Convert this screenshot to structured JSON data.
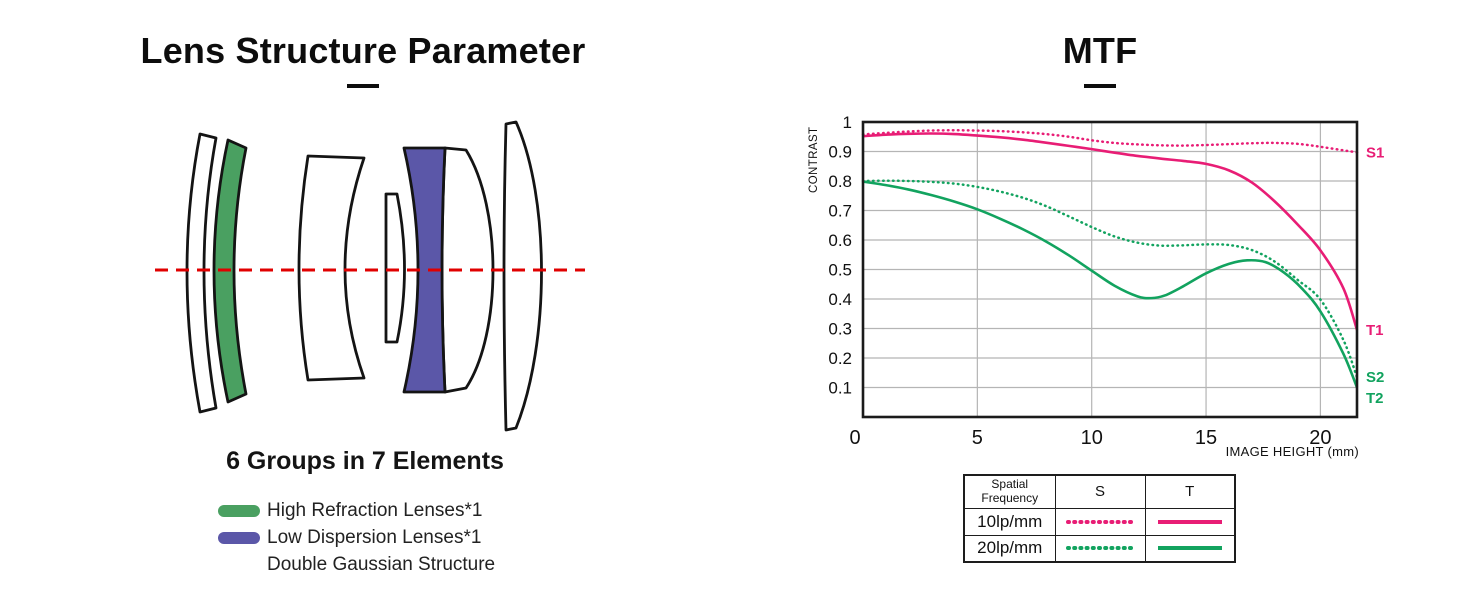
{
  "lens_section": {
    "title": "Lens Structure Parameter",
    "groups_text": "6 Groups in 7 Elements",
    "legend": [
      {
        "label": "High Refraction Lenses*1",
        "swatch": "high_refraction"
      },
      {
        "label": "Low Dispersion Lenses*1",
        "swatch": "low_dispersion"
      },
      {
        "label": "Double Gaussian Structure",
        "swatch": null
      }
    ],
    "colors": {
      "high_refraction": "#4aa061",
      "low_dispersion": "#5b57a8",
      "optical_axis": "#e00000",
      "outline": "#141414",
      "element_fill": "#ffffff"
    }
  },
  "mtf_section": {
    "title": "MTF",
    "table": {
      "headers": [
        "Spatial Frequency",
        "S",
        "T"
      ],
      "rows": [
        {
          "frequency": "10lp/mm",
          "color": "#e81d75",
          "s_style": "dotted",
          "t_style": "solid"
        },
        {
          "frequency": "20lp/mm",
          "color": "#12a35f",
          "s_style": "dotted",
          "t_style": "solid"
        }
      ]
    }
  },
  "chart_data": {
    "type": "line",
    "title": "MTF",
    "xlabel": "IMAGE HEIGHT (mm)",
    "ylabel": "CONTRAST",
    "xlim": [
      0,
      21.6
    ],
    "ylim": [
      0,
      1
    ],
    "x_ticks": [
      0,
      5,
      10,
      15,
      20
    ],
    "y_ticks": [
      0.1,
      0.2,
      0.3,
      0.4,
      0.5,
      0.6,
      0.7,
      0.8,
      0.9,
      1
    ],
    "grid": true,
    "grid_color": "#b5b5b5",
    "legend_position": "right-edge-labels",
    "series": [
      {
        "name": "10lp/mm Sagittal",
        "label": "S1",
        "color": "#e81d75",
        "style": "dotted",
        "points": [
          [
            0,
            0.958
          ],
          [
            1,
            0.963
          ],
          [
            2,
            0.968
          ],
          [
            3,
            0.971
          ],
          [
            4,
            0.972
          ],
          [
            5,
            0.971
          ],
          [
            6,
            0.969
          ],
          [
            7,
            0.965
          ],
          [
            8,
            0.959
          ],
          [
            9,
            0.95
          ],
          [
            10,
            0.938
          ],
          [
            11,
            0.929
          ],
          [
            12,
            0.924
          ],
          [
            13,
            0.921
          ],
          [
            14,
            0.92
          ],
          [
            15,
            0.922
          ],
          [
            16,
            0.925
          ],
          [
            17,
            0.928
          ],
          [
            18,
            0.929
          ],
          [
            19,
            0.926
          ],
          [
            20,
            0.916
          ],
          [
            21,
            0.904
          ],
          [
            21.6,
            0.897
          ]
        ]
      },
      {
        "name": "10lp/mm Tangential",
        "label": "T1",
        "color": "#e81d75",
        "style": "solid",
        "points": [
          [
            0,
            0.952
          ],
          [
            1,
            0.957
          ],
          [
            2,
            0.96
          ],
          [
            3,
            0.961
          ],
          [
            4,
            0.959
          ],
          [
            5,
            0.954
          ],
          [
            6,
            0.948
          ],
          [
            7,
            0.94
          ],
          [
            8,
            0.93
          ],
          [
            9,
            0.919
          ],
          [
            10,
            0.908
          ],
          [
            11,
            0.896
          ],
          [
            12,
            0.885
          ],
          [
            13,
            0.876
          ],
          [
            14,
            0.868
          ],
          [
            15,
            0.858
          ],
          [
            16,
            0.836
          ],
          [
            17,
            0.795
          ],
          [
            18,
            0.731
          ],
          [
            19,
            0.653
          ],
          [
            20,
            0.565
          ],
          [
            21,
            0.437
          ],
          [
            21.6,
            0.295
          ]
        ]
      },
      {
        "name": "20lp/mm Sagittal",
        "label": "S2",
        "color": "#12a35f",
        "style": "dotted",
        "points": [
          [
            0,
            0.8
          ],
          [
            1,
            0.801
          ],
          [
            2,
            0.8
          ],
          [
            3,
            0.797
          ],
          [
            4,
            0.791
          ],
          [
            5,
            0.78
          ],
          [
            6,
            0.764
          ],
          [
            7,
            0.743
          ],
          [
            8,
            0.715
          ],
          [
            9,
            0.68
          ],
          [
            10,
            0.644
          ],
          [
            11,
            0.612
          ],
          [
            12,
            0.591
          ],
          [
            13,
            0.581
          ],
          [
            14,
            0.582
          ],
          [
            15,
            0.585
          ],
          [
            16,
            0.583
          ],
          [
            17,
            0.566
          ],
          [
            18,
            0.527
          ],
          [
            19,
            0.465
          ],
          [
            20,
            0.398
          ],
          [
            21,
            0.262
          ],
          [
            21.6,
            0.135
          ]
        ]
      },
      {
        "name": "20lp/mm Tangential",
        "label": "T2",
        "color": "#12a35f",
        "style": "solid",
        "points": [
          [
            0,
            0.798
          ],
          [
            1,
            0.786
          ],
          [
            2,
            0.771
          ],
          [
            3,
            0.752
          ],
          [
            4,
            0.73
          ],
          [
            5,
            0.704
          ],
          [
            6,
            0.672
          ],
          [
            7,
            0.636
          ],
          [
            8,
            0.595
          ],
          [
            9,
            0.548
          ],
          [
            10,
            0.496
          ],
          [
            11,
            0.445
          ],
          [
            12,
            0.409
          ],
          [
            12.6,
            0.403
          ],
          [
            13.2,
            0.412
          ],
          [
            14,
            0.443
          ],
          [
            15,
            0.487
          ],
          [
            16,
            0.519
          ],
          [
            16.8,
            0.531
          ],
          [
            17.6,
            0.525
          ],
          [
            18.4,
            0.49
          ],
          [
            19.2,
            0.435
          ],
          [
            20,
            0.358
          ],
          [
            21,
            0.215
          ],
          [
            21.6,
            0.1
          ]
        ]
      }
    ]
  }
}
